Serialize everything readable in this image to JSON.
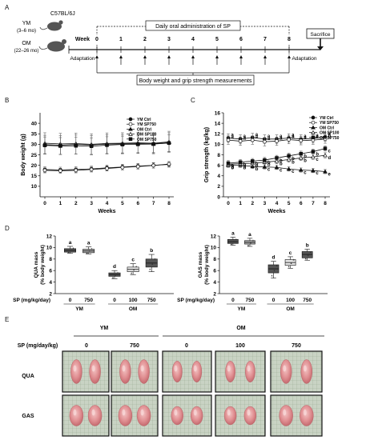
{
  "panel_labels": {
    "a": "A",
    "b": "B",
    "c": "C",
    "d": "D",
    "e": "E"
  },
  "panel_a": {
    "strain": "C57BL/6J",
    "ym_label": "YM",
    "ym_age": "(3–6 mo)",
    "om_label": "OM",
    "om_age": "(22–26 mo)",
    "week_label": "Week",
    "weeks": [
      "0",
      "1",
      "2",
      "3",
      "4",
      "5",
      "6",
      "7",
      "8"
    ],
    "admin_label": "Daily oral administration of SP",
    "adaptation_left": "Adaptation",
    "adaptation_right": "Adaptation",
    "sacrifice_label": "Sacrifice",
    "measure_label": "Body weight and grip strength measurements"
  },
  "chart_data": [
    {
      "id": "body-weight",
      "type": "line",
      "xlabel": "Weeks",
      "ylabel": "Body weight (g)",
      "x": [
        0,
        1,
        2,
        3,
        4,
        5,
        6,
        7,
        8
      ],
      "ylim": [
        5,
        45
      ],
      "yticks": [
        10,
        15,
        20,
        25,
        30,
        35,
        40
      ],
      "legend": [
        "YM Ctrl",
        "YM SP750",
        "OM Ctrl",
        "OM SP100",
        "OM SP750"
      ],
      "series": [
        {
          "name": "YM Ctrl",
          "values": [
            18.0,
            17.8,
            18.0,
            18.3,
            18.8,
            19.2,
            19.6,
            20.0,
            20.4
          ],
          "err": [
            1.3,
            1.3,
            1.3,
            1.3,
            1.3,
            1.3,
            1.3,
            1.3,
            1.3
          ],
          "marker": "filled-circle"
        },
        {
          "name": "YM SP750",
          "values": [
            17.6,
            17.4,
            17.6,
            18.0,
            18.5,
            19.0,
            19.4,
            19.9,
            20.6
          ],
          "err": [
            1.2,
            1.2,
            1.2,
            1.2,
            1.2,
            1.2,
            1.2,
            1.2,
            1.2
          ],
          "marker": "open-circle"
        },
        {
          "name": "OM Ctrl",
          "values": [
            30.5,
            30.2,
            30.3,
            30.0,
            30.4,
            30.5,
            30.7,
            30.5,
            31.2
          ],
          "err": [
            5,
            5,
            5,
            5,
            5,
            5,
            5,
            5,
            5
          ],
          "marker": "filled-triangle"
        },
        {
          "name": "OM SP100",
          "values": [
            29.8,
            29.6,
            29.9,
            29.7,
            30.1,
            30.2,
            30.4,
            30.3,
            31.0
          ],
          "err": [
            4.5,
            4.5,
            4.5,
            4.5,
            4.5,
            4.5,
            4.5,
            4.5,
            4.5
          ],
          "marker": "open-triangle"
        },
        {
          "name": "OM SP750",
          "values": [
            29.5,
            29.2,
            29.3,
            29.1,
            29.6,
            29.9,
            30.0,
            30.1,
            30.6
          ],
          "err": [
            4,
            4,
            4,
            4,
            4,
            4,
            4,
            4,
            4
          ],
          "marker": "filled-square"
        }
      ]
    },
    {
      "id": "grip-strength",
      "type": "line",
      "xlabel": "Weeks",
      "ylabel": "Grip strength (kg/kg)",
      "x": [
        0,
        1,
        2,
        3,
        4,
        5,
        6,
        7,
        8
      ],
      "ylim": [
        0,
        16
      ],
      "yticks": [
        0,
        2,
        4,
        6,
        8,
        10,
        12,
        14,
        16
      ],
      "legend": [
        "YM Ctrl",
        "YM SP750",
        "OM Ctrl",
        "OM SP100",
        "OM SP750"
      ],
      "series": [
        {
          "name": "YM Ctrl",
          "values": [
            11.2,
            11.0,
            11.3,
            11.0,
            11.0,
            11.2,
            11.0,
            11.1,
            11.4
          ],
          "err": [
            0.8,
            0.8,
            0.8,
            0.8,
            0.8,
            0.8,
            0.8,
            0.8,
            0.8
          ],
          "marker": "filled-circle",
          "letters": [
            "a",
            "a",
            "a",
            "a",
            "a",
            "a",
            "a",
            "a",
            "a"
          ]
        },
        {
          "name": "YM SP750",
          "values": [
            10.8,
            10.6,
            10.8,
            10.5,
            10.6,
            10.9,
            10.7,
            10.8,
            11.0
          ],
          "err": [
            0.8,
            0.8,
            0.8,
            0.8,
            0.8,
            0.8,
            0.8,
            0.8,
            0.8
          ],
          "marker": "open-circle",
          "letters": [
            "a",
            "a",
            "a",
            "a",
            "a",
            "a",
            "a",
            "a",
            "b"
          ]
        },
        {
          "name": "OM Ctrl",
          "values": [
            6.0,
            6.0,
            5.8,
            5.7,
            5.6,
            5.3,
            5.1,
            5.0,
            4.8
          ],
          "err": [
            0.4,
            0.4,
            0.4,
            0.4,
            0.4,
            0.4,
            0.4,
            0.4,
            0.4
          ],
          "marker": "filled-triangle",
          "letters": [
            "b",
            "b",
            "b",
            "c",
            "c",
            "c",
            "c",
            "c",
            "e"
          ]
        },
        {
          "name": "OM SP100",
          "values": [
            6.2,
            6.3,
            6.4,
            6.6,
            6.8,
            7.1,
            7.4,
            7.6,
            7.9
          ],
          "err": [
            0.5,
            0.5,
            0.5,
            0.5,
            0.5,
            0.5,
            0.5,
            0.5,
            0.5
          ],
          "marker": "open-triangle",
          "letters": [
            "b",
            "b",
            "b",
            "b",
            "b",
            "b",
            "b",
            "c",
            "d"
          ]
        },
        {
          "name": "OM SP750",
          "values": [
            6.4,
            6.6,
            6.8,
            7.0,
            7.4,
            7.8,
            8.2,
            8.6,
            9.2
          ],
          "err": [
            0.5,
            0.5,
            0.5,
            0.5,
            0.5,
            0.5,
            0.5,
            0.5,
            0.5
          ],
          "marker": "filled-square",
          "letters": [
            "b",
            "b",
            "b",
            "b",
            "b",
            "b",
            "b",
            "b",
            "c"
          ]
        }
      ]
    },
    {
      "id": "qua-mass",
      "type": "box",
      "ylabel": "QUA mass (% body weight)",
      "ylim": [
        2,
        12
      ],
      "yticks": [
        2,
        4,
        6,
        8,
        10,
        12
      ],
      "xlabel": "SP (mg/kg/day)",
      "doses": [
        "0",
        "750",
        "0",
        "100",
        "750"
      ],
      "groups": [
        "YM",
        "OM"
      ],
      "boxes": [
        {
          "q1": 9.2,
          "median": 9.5,
          "q3": 9.8,
          "min": 9.0,
          "max": 10.2,
          "letter": "a",
          "fill": "#555555"
        },
        {
          "q1": 9.1,
          "median": 9.4,
          "q3": 9.7,
          "min": 8.9,
          "max": 10.1,
          "letter": "a",
          "fill": "#aaaaaa"
        },
        {
          "q1": 5.0,
          "median": 5.3,
          "q3": 5.6,
          "min": 4.6,
          "max": 6.0,
          "letter": "d",
          "fill": "#555555"
        },
        {
          "q1": 5.8,
          "median": 6.2,
          "q3": 6.6,
          "min": 5.3,
          "max": 7.2,
          "letter": "c",
          "fill": "#e6e6e6"
        },
        {
          "q1": 6.6,
          "median": 7.3,
          "q3": 8.0,
          "min": 5.8,
          "max": 8.8,
          "letter": "b",
          "fill": "#555555"
        }
      ]
    },
    {
      "id": "gas-mass",
      "type": "box",
      "ylabel": "GAS mass (% body weight)",
      "ylim": [
        2,
        12
      ],
      "yticks": [
        2,
        4,
        6,
        8,
        10,
        12
      ],
      "xlabel": "SP (mg/kg/day)",
      "doses": [
        "0",
        "750",
        "0",
        "100",
        "750"
      ],
      "groups": [
        "YM",
        "OM"
      ],
      "boxes": [
        {
          "q1": 10.7,
          "median": 11.0,
          "q3": 11.4,
          "min": 10.4,
          "max": 11.8,
          "letter": "a",
          "fill": "#555555"
        },
        {
          "q1": 10.6,
          "median": 10.9,
          "q3": 11.2,
          "min": 10.2,
          "max": 11.6,
          "letter": "a",
          "fill": "#aaaaaa"
        },
        {
          "q1": 5.6,
          "median": 6.3,
          "q3": 7.0,
          "min": 4.7,
          "max": 7.6,
          "letter": "d",
          "fill": "#555555"
        },
        {
          "q1": 6.9,
          "median": 7.4,
          "q3": 7.9,
          "min": 6.4,
          "max": 8.4,
          "letter": "c",
          "fill": "#e6e6e6"
        },
        {
          "q1": 8.2,
          "median": 8.8,
          "q3": 9.3,
          "min": 7.8,
          "max": 9.7,
          "letter": "b",
          "fill": "#555555"
        }
      ]
    }
  ],
  "panel_e": {
    "dose_label": "SP (mg/day/kg)",
    "ym_label": "YM",
    "om_label": "OM",
    "doses": [
      "0",
      "750",
      "0",
      "100",
      "750"
    ],
    "rows": [
      "QUA",
      "GAS"
    ]
  }
}
